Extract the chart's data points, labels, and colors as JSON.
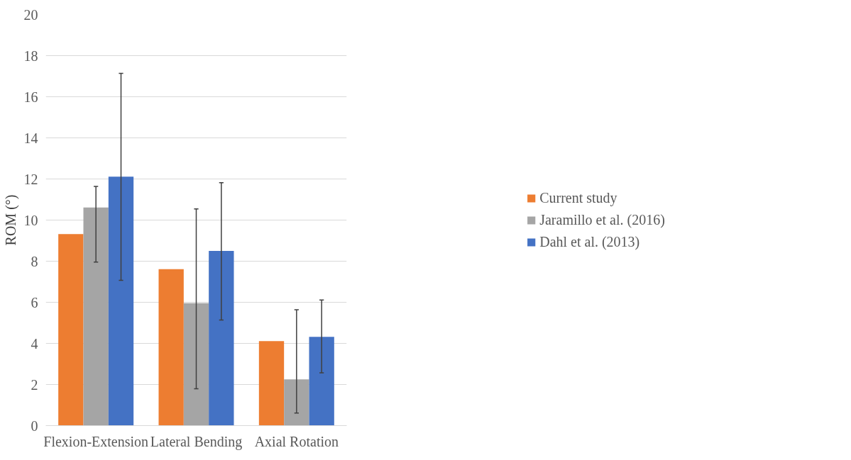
{
  "chart_data": {
    "type": "bar",
    "ylabel": "ROM (°)",
    "categories": [
      "Flexion-Extension",
      "Lateral Bending",
      "Axial Rotation"
    ],
    "series": [
      {
        "name": "Current study",
        "color": "#ed7d31",
        "values": [
          9.32,
          7.61,
          4.11
        ]
      },
      {
        "name": "Jaramillo et al. (2016)",
        "color": "#a5a5a5",
        "values": [
          10.61,
          5.96,
          2.25
        ],
        "errors": [
          [
            7.96,
            11.64
          ],
          [
            1.79,
            10.54
          ],
          [
            0.61,
            5.64
          ]
        ]
      },
      {
        "name": "Dahl et al. (2013)",
        "color": "#4472c4",
        "values": [
          12.11,
          8.5,
          4.32
        ],
        "errors": [
          [
            7.07,
            17.14
          ],
          [
            5.14,
            11.82
          ],
          [
            2.57,
            6.11
          ]
        ]
      }
    ],
    "ylim": [
      0,
      20
    ],
    "yticks": [
      0,
      2,
      4,
      6,
      8,
      10,
      12,
      14,
      16,
      18,
      20
    ],
    "grid": "y",
    "legend": "right"
  }
}
